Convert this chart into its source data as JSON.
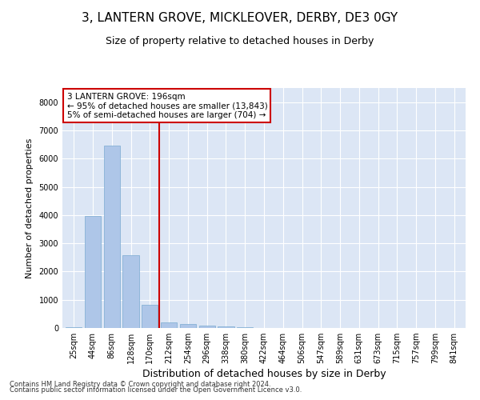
{
  "title": "3, LANTERN GROVE, MICKLEOVER, DERBY, DE3 0GY",
  "subtitle": "Size of property relative to detached houses in Derby",
  "xlabel": "Distribution of detached houses by size in Derby",
  "ylabel": "Number of detached properties",
  "footer_line1": "Contains HM Land Registry data © Crown copyright and database right 2024.",
  "footer_line2": "Contains public sector information licensed under the Open Government Licence v3.0.",
  "categories": [
    "25sqm",
    "44sqm",
    "86sqm",
    "128sqm",
    "170sqm",
    "212sqm",
    "254sqm",
    "296sqm",
    "338sqm",
    "380sqm",
    "422sqm",
    "464sqm",
    "506sqm",
    "547sqm",
    "589sqm",
    "631sqm",
    "673sqm",
    "715sqm",
    "757sqm",
    "799sqm",
    "841sqm"
  ],
  "bar_values": [
    20,
    3980,
    6460,
    2580,
    820,
    190,
    130,
    85,
    55,
    30,
    0,
    0,
    0,
    0,
    0,
    0,
    0,
    0,
    0,
    0,
    0
  ],
  "bar_color": "#aec6e8",
  "bar_edge_color": "#7aaad0",
  "vline_color": "#cc0000",
  "vline_x": 4.5,
  "ylim": [
    0,
    8500
  ],
  "yticks": [
    0,
    1000,
    2000,
    3000,
    4000,
    5000,
    6000,
    7000,
    8000
  ],
  "annotation_text": "3 LANTERN GROVE: 196sqm\n← 95% of detached houses are smaller (13,843)\n5% of semi-detached houses are larger (704) →",
  "plot_bg_color": "#dce6f5",
  "title_fontsize": 11,
  "subtitle_fontsize": 9,
  "xlabel_fontsize": 9,
  "ylabel_fontsize": 8,
  "tick_fontsize": 7,
  "annotation_fontsize": 7.5
}
